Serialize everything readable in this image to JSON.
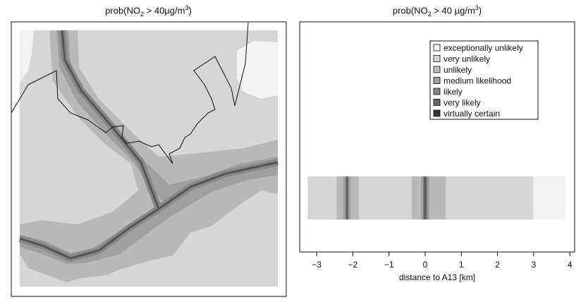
{
  "chart_data": [
    {
      "type": "heatmap",
      "title": {
        "prefix": "prob(NO",
        "sub": "2",
        "mid": " > 40µg/m",
        "sup": "3",
        "suffix": ")"
      },
      "legend": "none",
      "grid": false,
      "note": "spatial probability map with road network and outline"
    },
    {
      "type": "heatmap",
      "title": {
        "prefix": "prob(NO",
        "sub": "2",
        "mid": " > 40 µg/m",
        "sup": "3",
        "suffix": ")"
      },
      "xlabel": "distance to A13 [km]",
      "xlim": [
        -3.3,
        4.0
      ],
      "xticks": [
        -3,
        -2,
        -1,
        0,
        1,
        2,
        3,
        4
      ],
      "xtick_labels": [
        "−3",
        "−2",
        "−1",
        "0",
        "1",
        "2",
        "3",
        "4"
      ],
      "grid": false,
      "legend_position": "top-right",
      "categories": [
        {
          "label": "exceptionally unlikely",
          "color": "#f2f2f2"
        },
        {
          "label": "very unlikely",
          "color": "#d6d6d6"
        },
        {
          "label": "unlikely",
          "color": "#b9b9b9"
        },
        {
          "label": "medium likelihood",
          "color": "#a0a0a0"
        },
        {
          "label": "likely",
          "color": "#878787"
        },
        {
          "label": "very likely",
          "color": "#636363"
        },
        {
          "label": "virtually certain",
          "color": "#333333"
        }
      ],
      "bands": [
        {
          "x0": -3.25,
          "x1": -2.45,
          "category": "very unlikely"
        },
        {
          "x0": -2.45,
          "x1": -2.27,
          "category": "unlikely"
        },
        {
          "x0": -2.27,
          "x1": -2.2,
          "category": "medium likelihood"
        },
        {
          "x0": -2.2,
          "x1": -2.12,
          "category": "very likely"
        },
        {
          "x0": -2.12,
          "x1": -2.05,
          "category": "medium likelihood"
        },
        {
          "x0": -2.05,
          "x1": -1.83,
          "category": "unlikely"
        },
        {
          "x0": -1.83,
          "x1": -0.37,
          "category": "very unlikely"
        },
        {
          "x0": -0.37,
          "x1": -0.12,
          "category": "unlikely"
        },
        {
          "x0": -0.12,
          "x1": -0.05,
          "category": "medium likelihood"
        },
        {
          "x0": -0.05,
          "x1": 0.05,
          "category": "very likely"
        },
        {
          "x0": 0.05,
          "x1": 0.12,
          "category": "medium likelihood"
        },
        {
          "x0": 0.12,
          "x1": 0.57,
          "category": "unlikely"
        },
        {
          "x0": 0.57,
          "x1": 2.99,
          "category": "very unlikely"
        },
        {
          "x0": 2.99,
          "x1": 3.88,
          "category": "exceptionally unlikely"
        }
      ]
    }
  ]
}
